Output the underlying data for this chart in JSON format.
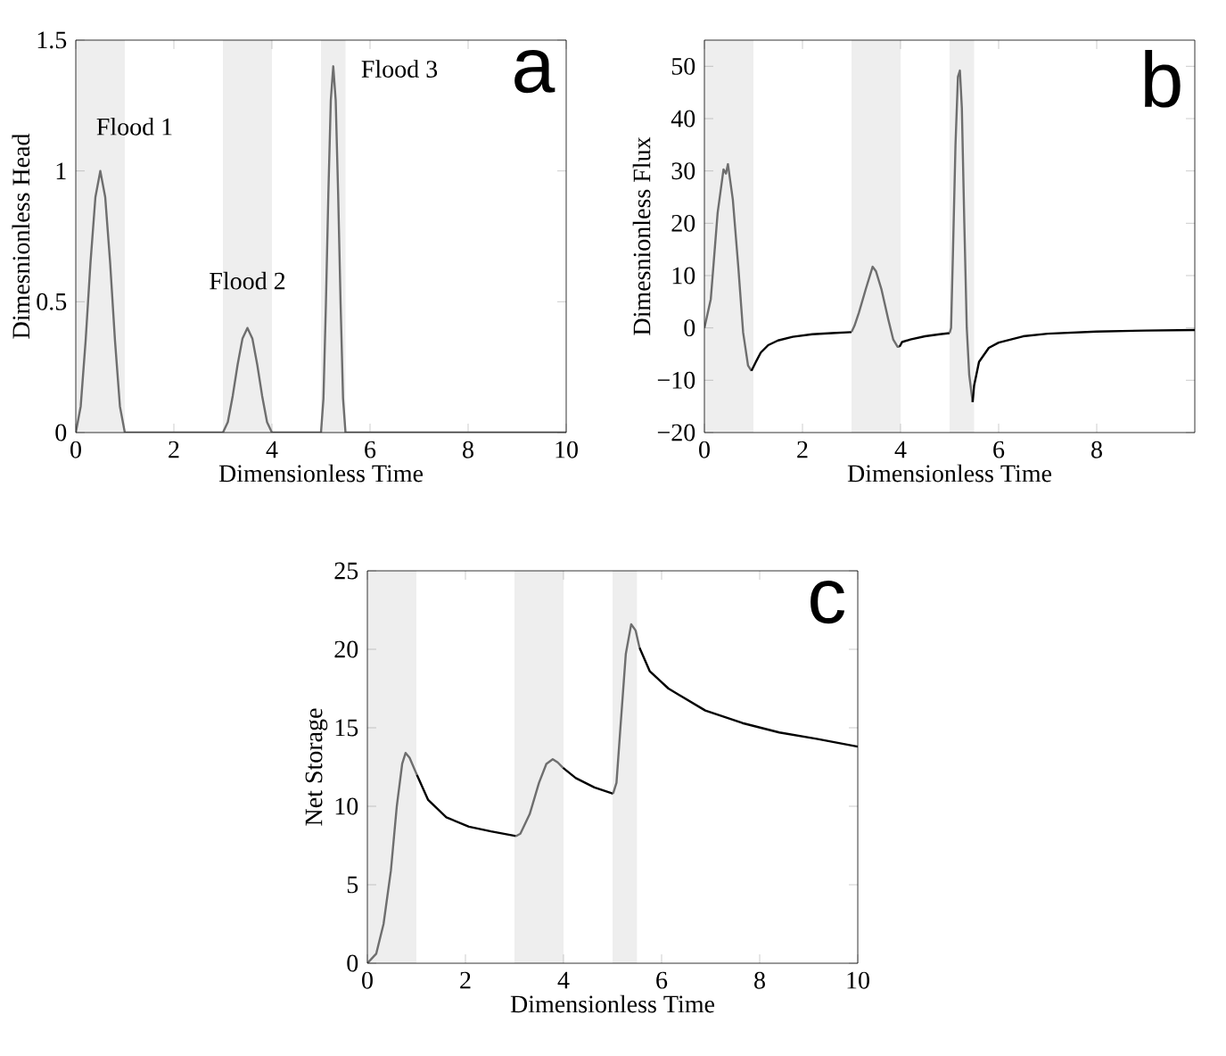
{
  "chart_data": [
    {
      "type": "line",
      "xlabel": "Dimensionless Time",
      "ylabel": "Dimesnionless Head",
      "xlim": [
        0,
        10
      ],
      "ylim": [
        0,
        1.5
      ],
      "xticks": [
        0,
        2,
        4,
        6,
        8,
        10
      ],
      "yticks": [
        0,
        0.5,
        1,
        1.5
      ],
      "bands": [
        {
          "axis": "x",
          "from": 0,
          "to": 1,
          "color": "#eeeeee"
        },
        {
          "axis": "x",
          "from": 3,
          "to": 4,
          "color": "#eeeeee"
        },
        {
          "axis": "x",
          "from": 5,
          "to": 5.5,
          "color": "#eeeeee"
        }
      ],
      "series": [
        {
          "color": "#6e6e6e",
          "x": [
            0,
            0.1,
            0.2,
            0.3,
            0.4,
            0.5,
            0.6,
            0.7,
            0.8,
            0.9,
            1,
            3,
            3.1,
            3.2,
            3.3,
            3.4,
            3.5,
            3.6,
            3.7,
            3.8,
            3.9,
            4,
            5,
            5.05,
            5.1,
            5.15,
            5.2,
            5.25,
            5.3,
            5.35,
            5.4,
            5.45,
            5.5,
            10
          ],
          "values": [
            0,
            0.1,
            0.35,
            0.65,
            0.9,
            1,
            0.9,
            0.65,
            0.35,
            0.1,
            0,
            0,
            0.04,
            0.14,
            0.26,
            0.36,
            0.4,
            0.36,
            0.26,
            0.14,
            0.04,
            0,
            0,
            0.13,
            0.49,
            0.91,
            1.27,
            1.4,
            1.27,
            0.91,
            0.49,
            0.13,
            0,
            0
          ]
        }
      ],
      "annotations": [
        "a",
        "Flood 1",
        "Flood 2",
        "Flood 3"
      ]
    },
    {
      "type": "line",
      "xlabel": "Dimensionless Time",
      "ylabel": "Dimesnionless Flux",
      "xlim": [
        0,
        10
      ],
      "ylim": [
        -20,
        55
      ],
      "xticks": [
        0,
        2,
        4,
        6,
        8
      ],
      "yticks": [
        {
          "value": -20,
          "label": "−20"
        },
        {
          "value": -10,
          "label": "−10"
        },
        0,
        10,
        20,
        30,
        40,
        50
      ],
      "bands": [
        {
          "axis": "x",
          "from": 0,
          "to": 1,
          "color": "#eeeeee"
        },
        {
          "axis": "x",
          "from": 3,
          "to": 4,
          "color": "#eeeeee"
        },
        {
          "axis": "x",
          "from": 5,
          "to": 5.5,
          "color": "#eeeeee"
        }
      ],
      "series": [
        {
          "color": "#6e6e6e",
          "x": [
            0,
            0.13,
            0.27,
            0.39,
            0.44,
            0.48,
            0.58,
            0.69,
            0.79,
            0.89,
            0.96
          ],
          "values": [
            0,
            5.5,
            22,
            30.3,
            29.5,
            31.3,
            24.5,
            11.8,
            -0.9,
            -7.2,
            -8.2
          ]
        },
        {
          "color": "#000000",
          "x": [
            0.96,
            1.05,
            1.15,
            1.3,
            1.5,
            1.8,
            2.2,
            2.6,
            3.0
          ],
          "values": [
            -8.2,
            -6.5,
            -4.7,
            -3.3,
            -2.4,
            -1.7,
            -1.2,
            -1,
            -0.8
          ]
        },
        {
          "color": "#6e6e6e",
          "x": [
            3.0,
            3.06,
            3.15,
            3.29,
            3.43,
            3.5,
            3.61,
            3.75,
            3.85,
            3.94,
            3.98
          ],
          "values": [
            -0.8,
            0.4,
            2.9,
            7.4,
            11.7,
            10.8,
            7.4,
            1.6,
            -2.2,
            -3.6,
            -3.6
          ]
        },
        {
          "color": "#000000",
          "x": [
            3.98,
            4.03,
            4.2,
            4.5,
            4.8,
            5.0
          ],
          "values": [
            -3.6,
            -2.7,
            -2.2,
            -1.6,
            -1.2,
            -1
          ]
        },
        {
          "color": "#6e6e6e",
          "x": [
            5.0,
            5.03,
            5.07,
            5.12,
            5.17,
            5.21,
            5.25,
            5.3,
            5.35,
            5.4,
            5.47
          ],
          "values": [
            -1,
            0,
            15,
            35,
            48,
            49.2,
            42,
            20,
            0,
            -9,
            -14.2
          ]
        },
        {
          "color": "#000000",
          "x": [
            5.47,
            5.5,
            5.6,
            5.8,
            6.0,
            6.5,
            7,
            8,
            9,
            10
          ],
          "values": [
            -14.2,
            -11,
            -6.5,
            -3.8,
            -2.8,
            -1.6,
            -1.1,
            -0.7,
            -0.5,
            -0.4
          ]
        }
      ],
      "annotations": [
        "b"
      ]
    },
    {
      "type": "line",
      "xlabel": "Dimensionless Time",
      "ylabel": "Net Storage",
      "xlim": [
        0,
        10
      ],
      "ylim": [
        0,
        25
      ],
      "xticks": [
        0,
        2,
        4,
        6,
        8,
        10
      ],
      "yticks": [
        0,
        5,
        10,
        15,
        20,
        25
      ],
      "bands": [
        {
          "axis": "x",
          "from": 0,
          "to": 1,
          "color": "#eeeeee"
        },
        {
          "axis": "x",
          "from": 3,
          "to": 4,
          "color": "#eeeeee"
        },
        {
          "axis": "x",
          "from": 5,
          "to": 5.5,
          "color": "#eeeeee"
        }
      ],
      "series": [
        {
          "color": "#6e6e6e",
          "x": [
            0,
            0.18,
            0.33,
            0.48,
            0.6,
            0.71,
            0.78,
            0.86,
            1.01
          ],
          "values": [
            0,
            0.6,
            2.5,
            5.9,
            10,
            12.7,
            13.4,
            13.1,
            12
          ]
        },
        {
          "color": "#000000",
          "x": [
            1.01,
            1.24,
            1.61,
            2.07,
            2.52,
            3.03
          ],
          "values": [
            12,
            10.4,
            9.3,
            8.7,
            8.4,
            8.1
          ]
        },
        {
          "color": "#6e6e6e",
          "x": [
            3.03,
            3.12,
            3.31,
            3.5,
            3.65,
            3.78,
            3.88,
            3.99
          ],
          "values": [
            8.1,
            8.25,
            9.5,
            11.5,
            12.7,
            13,
            12.8,
            12.45
          ]
        },
        {
          "color": "#000000",
          "x": [
            3.99,
            4.25,
            4.63,
            5.01
          ],
          "values": [
            12.45,
            11.8,
            11.2,
            10.8
          ]
        },
        {
          "color": "#6e6e6e",
          "x": [
            5.01,
            5.08,
            5.16,
            5.27,
            5.38,
            5.47,
            5.55
          ],
          "values": [
            10.8,
            11.5,
            15,
            19.7,
            21.6,
            21.2,
            20.1
          ]
        },
        {
          "color": "#000000",
          "x": [
            5.55,
            5.76,
            6.14,
            6.89,
            7.65,
            8.4,
            9.16,
            10
          ],
          "values": [
            20.1,
            18.6,
            17.5,
            16.1,
            15.3,
            14.7,
            14.3,
            13.8
          ]
        }
      ],
      "annotations": [
        "c"
      ]
    }
  ]
}
